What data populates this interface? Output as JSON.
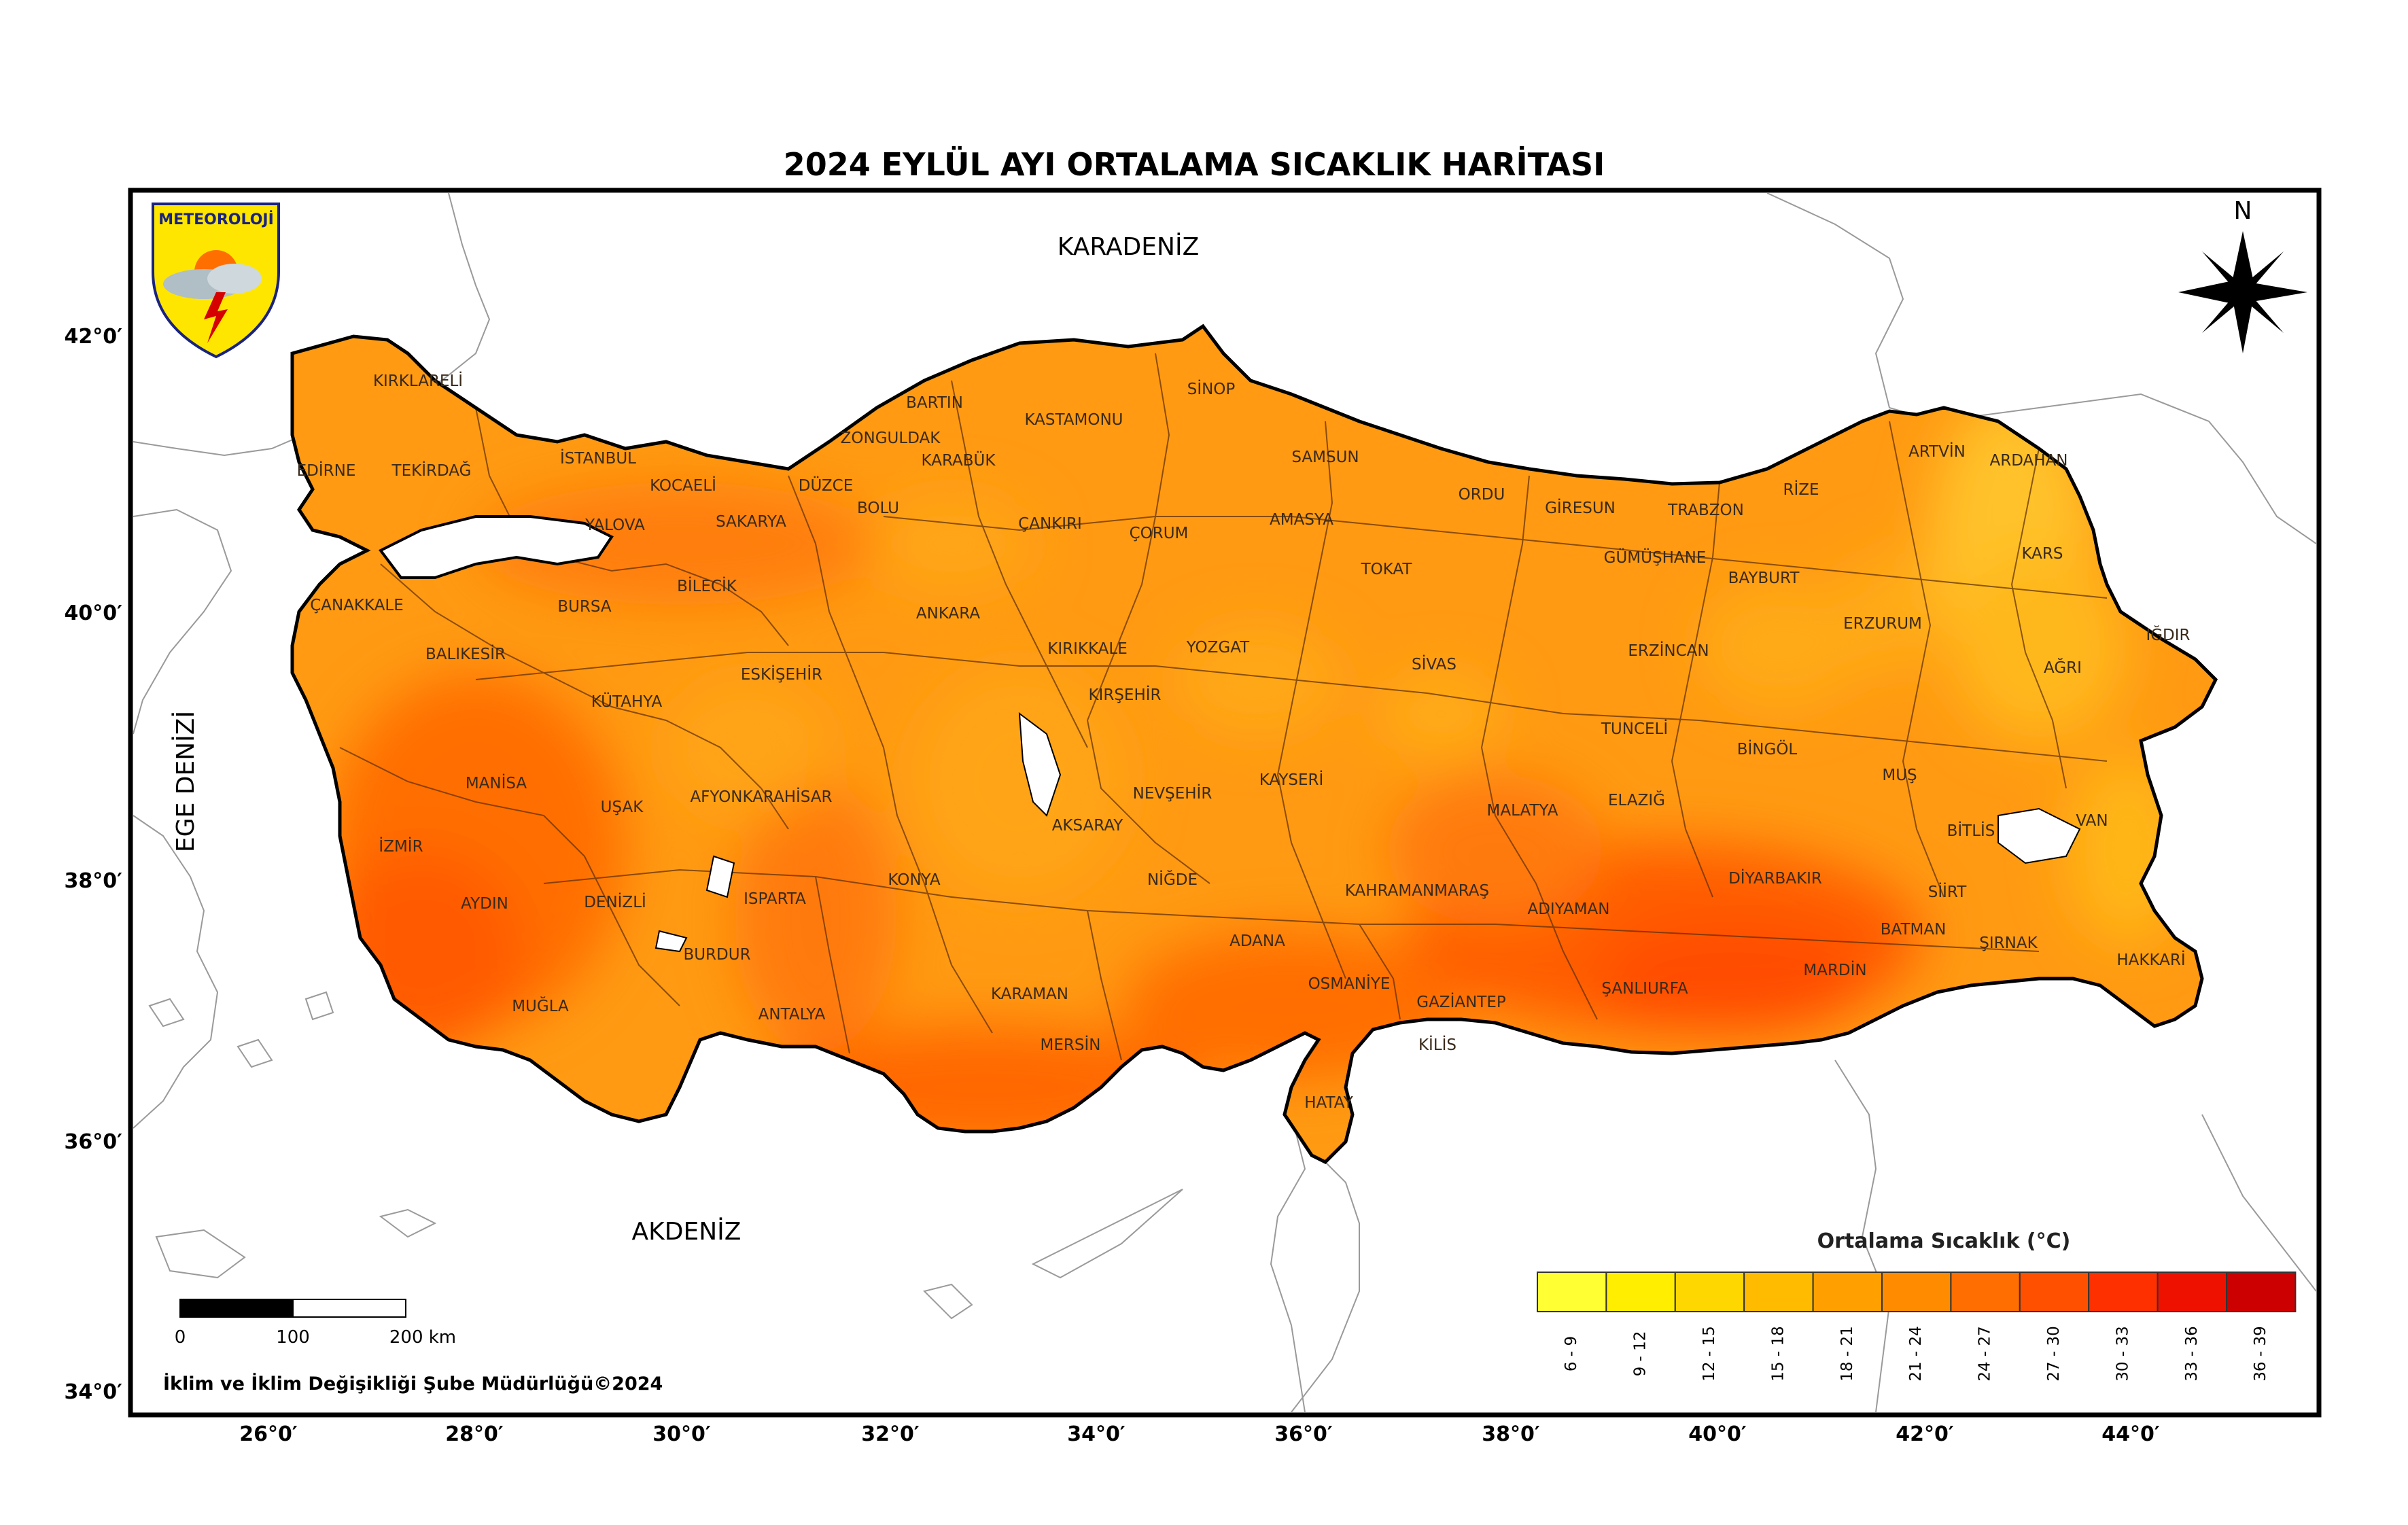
{
  "title": "2024 EYLÜL AYI ORTALAMA SICAKLIK HARİTASI",
  "logo": {
    "text": "METEOROLOJİ",
    "icon": "sun-cloud-lightning-shield-icon"
  },
  "north_arrow": {
    "label": "N",
    "icon": "compass-rose-icon"
  },
  "seas": {
    "black_sea": "KARADENİZ",
    "aegean": "EGE DENİZİ",
    "mediterranean": "AKDENİZ"
  },
  "provinces": [
    "KIRKLARELİ",
    "EDİRNE",
    "TEKİRDAĞ",
    "İSTANBUL",
    "KOCAELİ",
    "YALOVA",
    "SAKARYA",
    "DÜZCE",
    "BOLU",
    "ZONGULDAK",
    "BARTIN",
    "KARABÜK",
    "KASTAMONU",
    "SİNOP",
    "SAMSUN",
    "ÇANKIRI",
    "ÇORUM",
    "AMASYA",
    "ORDU",
    "GİRESUN",
    "TRABZON",
    "RİZE",
    "ARTVİN",
    "ARDAHAN",
    "KARS",
    "IĞDIR",
    "AĞRI",
    "ERZURUM",
    "BAYBURT",
    "GÜMÜŞHANE",
    "ERZİNCAN",
    "TOKAT",
    "SİVAS",
    "YOZGAT",
    "KIRIKKALE",
    "ANKARA",
    "KIRŞEHİR",
    "NEVŞEHİR",
    "KAYSERİ",
    "MALATYA",
    "TUNCELİ",
    "ELAZIĞ",
    "BİNGÖL",
    "MUŞ",
    "BİTLİS",
    "VAN",
    "HAKKARİ",
    "ŞIRNAK",
    "SİİRT",
    "BATMAN",
    "MARDİN",
    "DİYARBAKIR",
    "ŞANLIURFA",
    "ADIYAMAN",
    "KAHRAMANMARAŞ",
    "GAZİANTEP",
    "KİLİS",
    "OSMANİYE",
    "HATAY",
    "ADANA",
    "MERSİN",
    "NİĞDE",
    "AKSARAY",
    "KONYA",
    "KARAMAN",
    "ANTALYA",
    "BURDUR",
    "ISPARTA",
    "AFYONKARAHİSAR",
    "ESKİŞEHİR",
    "BİLECİK",
    "BURSA",
    "BALIKESİR",
    "ÇANAKKALE",
    "KÜTAHYA",
    "UŞAK",
    "MANİSA",
    "İZMİR",
    "AYDIN",
    "DENİZLİ",
    "MUĞLA"
  ],
  "latitude_labels": [
    "42°0′",
    "40°0′",
    "38°0′",
    "36°0′",
    "34°0′"
  ],
  "longitude_labels": [
    "26°0′",
    "28°0′",
    "30°0′",
    "32°0′",
    "34°0′",
    "36°0′",
    "38°0′",
    "40°0′",
    "42°0′",
    "44°0′"
  ],
  "scale_bar": {
    "labels": [
      "0",
      "100",
      "200 km"
    ]
  },
  "credit": "İklim ve İklim Değişikliği Şube Müdürlüğü©2024",
  "legend": {
    "title": "Ortalama Sıcaklık (°C)",
    "classes": [
      {
        "label": "6 - 9",
        "color": "#ffff33"
      },
      {
        "label": "9 - 12",
        "color": "#ffee00"
      },
      {
        "label": "12 - 15",
        "color": "#ffd700"
      },
      {
        "label": "15 - 18",
        "color": "#ffbb00"
      },
      {
        "label": "18 - 21",
        "color": "#ffa000"
      },
      {
        "label": "21 - 24",
        "color": "#ff8c00"
      },
      {
        "label": "24 - 27",
        "color": "#ff6e00"
      },
      {
        "label": "27 - 30",
        "color": "#ff5000"
      },
      {
        "label": "30 - 33",
        "color": "#ff3000"
      },
      {
        "label": "33 - 36",
        "color": "#ee1100"
      },
      {
        "label": "36 - 39",
        "color": "#cc0000"
      }
    ]
  },
  "colors": {
    "land_base": "#ff9a12",
    "land_warm": "#ff7a08",
    "land_hot": "#ff5d05",
    "land_cool": "#ffbb18",
    "border": "#000000"
  }
}
